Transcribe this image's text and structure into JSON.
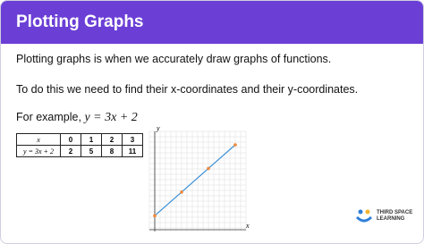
{
  "header": {
    "title": "Plotting Graphs"
  },
  "paragraphs": [
    "Plotting graphs is when we accurately draw graphs of functions.",
    "To do this we need to find their x-coordinates and their y-coordinates."
  ],
  "example": {
    "text": "For example,",
    "equation": "y = 3x + 2"
  },
  "table": {
    "header": [
      "x",
      0,
      1,
      2,
      3
    ],
    "rows": [
      [
        "y = 3x + 2",
        2,
        5,
        8,
        11
      ]
    ]
  },
  "graph": {
    "x_label": "x",
    "y_label": "y",
    "xlim": [
      -0.2,
      3.4
    ],
    "ylim": [
      0,
      12.7
    ],
    "line_color": "#3a8fd6",
    "point_color": "#f0883a"
  },
  "logo": {
    "line1": "THIRD SPACE",
    "line2": "LEARNING"
  }
}
